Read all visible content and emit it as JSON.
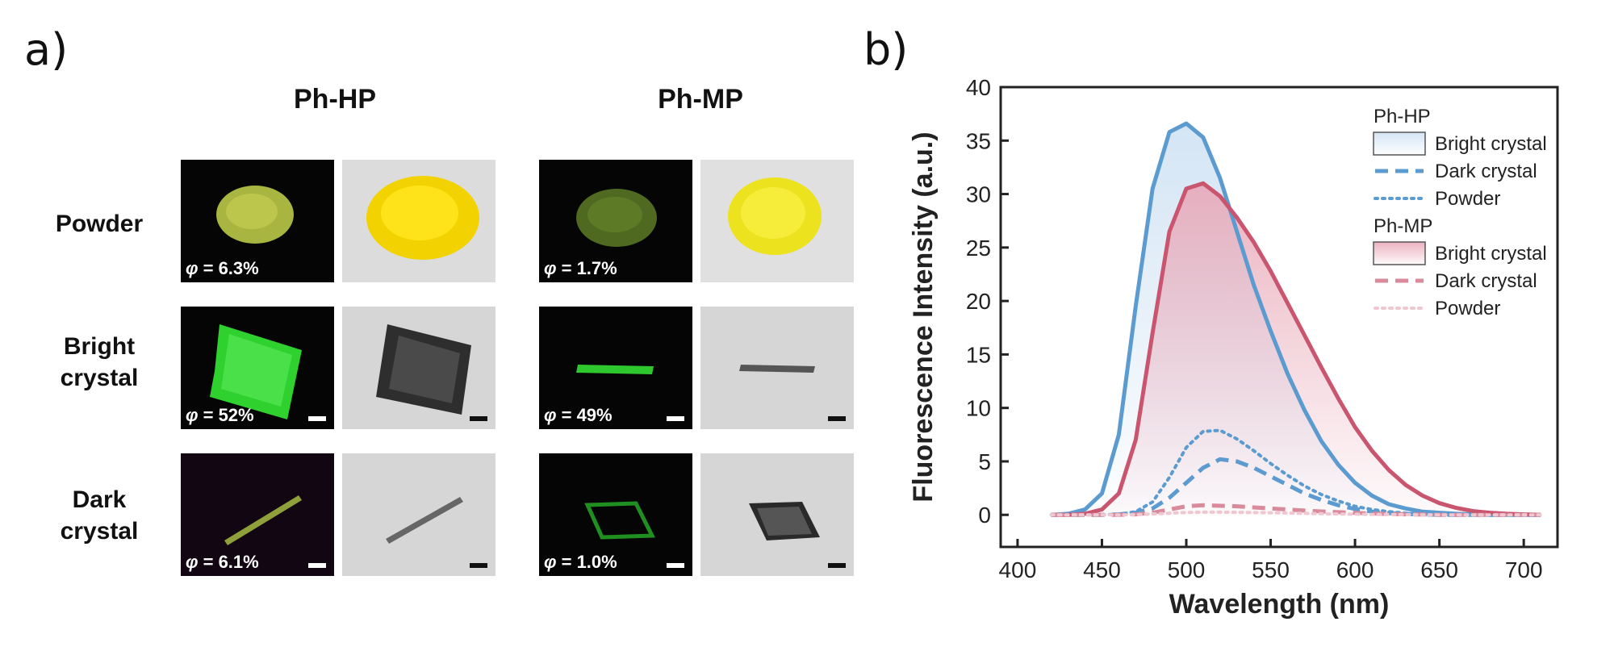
{
  "panel_a": {
    "label": "a)",
    "columns": [
      "Ph-HP",
      "Ph-MP"
    ],
    "rows": [
      {
        "line1": "Powder",
        "line2": ""
      },
      {
        "line1": "Bright",
        "line2": "crystal"
      },
      {
        "line1": "Dark",
        "line2": "crystal"
      }
    ],
    "phi_symbol": "φ",
    "quantum_yields": [
      [
        "= 6.3%",
        "= 1.7%"
      ],
      [
        "= 52%",
        "= 49%"
      ],
      [
        "= 6.1%",
        "= 1.0%"
      ]
    ]
  },
  "panel_b": {
    "label": "b)"
  },
  "chart_data": {
    "type": "line",
    "title": "",
    "xlabel": "Wavelength (nm)",
    "ylabel": "Fluorescence Intensity (a.u.)",
    "xlim": [
      390,
      720
    ],
    "ylim": [
      -3,
      40
    ],
    "xticks": [
      400,
      450,
      500,
      550,
      600,
      650,
      700
    ],
    "yticks": [
      0,
      5,
      10,
      15,
      20,
      25,
      30,
      35,
      40
    ],
    "grid": false,
    "legend_position": "top-right",
    "legend_groups": [
      "Ph-HP",
      "Ph-MP"
    ],
    "x": [
      420,
      430,
      440,
      450,
      460,
      470,
      480,
      490,
      500,
      510,
      520,
      530,
      540,
      550,
      560,
      570,
      580,
      590,
      600,
      610,
      620,
      630,
      640,
      650,
      660,
      670,
      680,
      690,
      700,
      710
    ],
    "series": [
      {
        "name": "Bright crystal",
        "group": "Ph-HP",
        "style": "filled",
        "color": "#5b9bd0",
        "fill": "#cfe2f3",
        "values": [
          0.0,
          0.1,
          0.5,
          2.0,
          7.5,
          19.5,
          30.5,
          35.8,
          36.6,
          35.3,
          31.5,
          26.5,
          21.5,
          17.2,
          13.2,
          9.8,
          6.9,
          4.7,
          3.0,
          1.8,
          1.0,
          0.6,
          0.3,
          0.2,
          0.1,
          0.05,
          0.0,
          0.0,
          0.0,
          0.0
        ]
      },
      {
        "name": "Dark crystal",
        "group": "Ph-HP",
        "style": "dashed",
        "color": "#5b9bd0",
        "values": [
          0.0,
          0.0,
          0.0,
          0.0,
          0.05,
          0.2,
          0.6,
          1.6,
          3.0,
          4.4,
          5.2,
          5.0,
          4.4,
          3.6,
          2.8,
          2.0,
          1.4,
          0.9,
          0.55,
          0.3,
          0.15,
          0.08,
          0.04,
          0.0,
          0.0,
          0.0,
          0.0,
          0.0,
          0.0,
          0.0
        ]
      },
      {
        "name": "Powder",
        "group": "Ph-HP",
        "style": "dotted",
        "color": "#5b9bd0",
        "values": [
          0.0,
          0.0,
          0.0,
          0.0,
          0.05,
          0.3,
          1.2,
          3.5,
          6.3,
          7.8,
          7.9,
          7.1,
          6.0,
          4.8,
          3.7,
          2.7,
          1.9,
          1.3,
          0.8,
          0.5,
          0.3,
          0.15,
          0.08,
          0.04,
          0.0,
          0.0,
          0.0,
          0.0,
          0.0,
          0.0
        ]
      },
      {
        "name": "Bright crystal",
        "group": "Ph-MP",
        "style": "filled",
        "color": "#c9556e",
        "fill": "#e8a5b5",
        "values": [
          0.0,
          0.0,
          0.1,
          0.5,
          2.0,
          7.0,
          17.0,
          26.5,
          30.5,
          31.0,
          29.8,
          27.8,
          25.5,
          22.8,
          19.8,
          16.8,
          13.8,
          10.9,
          8.2,
          6.0,
          4.2,
          2.8,
          1.8,
          1.1,
          0.65,
          0.35,
          0.2,
          0.1,
          0.05,
          0.0
        ]
      },
      {
        "name": "Dark crystal",
        "group": "Ph-MP",
        "style": "dashed",
        "color": "#d98a9b",
        "values": [
          0.0,
          0.0,
          0.0,
          0.0,
          0.0,
          0.05,
          0.2,
          0.5,
          0.8,
          0.9,
          0.85,
          0.8,
          0.7,
          0.6,
          0.5,
          0.4,
          0.32,
          0.25,
          0.18,
          0.12,
          0.08,
          0.05,
          0.03,
          0.0,
          0.0,
          0.0,
          0.0,
          0.0,
          0.0,
          0.0
        ]
      },
      {
        "name": "Powder",
        "group": "Ph-MP",
        "style": "dotted",
        "color": "#efc7d1",
        "values": [
          0.0,
          0.0,
          0.0,
          0.0,
          0.0,
          0.02,
          0.08,
          0.15,
          0.22,
          0.25,
          0.25,
          0.24,
          0.22,
          0.2,
          0.17,
          0.14,
          0.11,
          0.08,
          0.06,
          0.04,
          0.03,
          0.02,
          0.01,
          0.0,
          0.0,
          0.0,
          0.0,
          0.0,
          0.0,
          0.0
        ]
      }
    ]
  }
}
